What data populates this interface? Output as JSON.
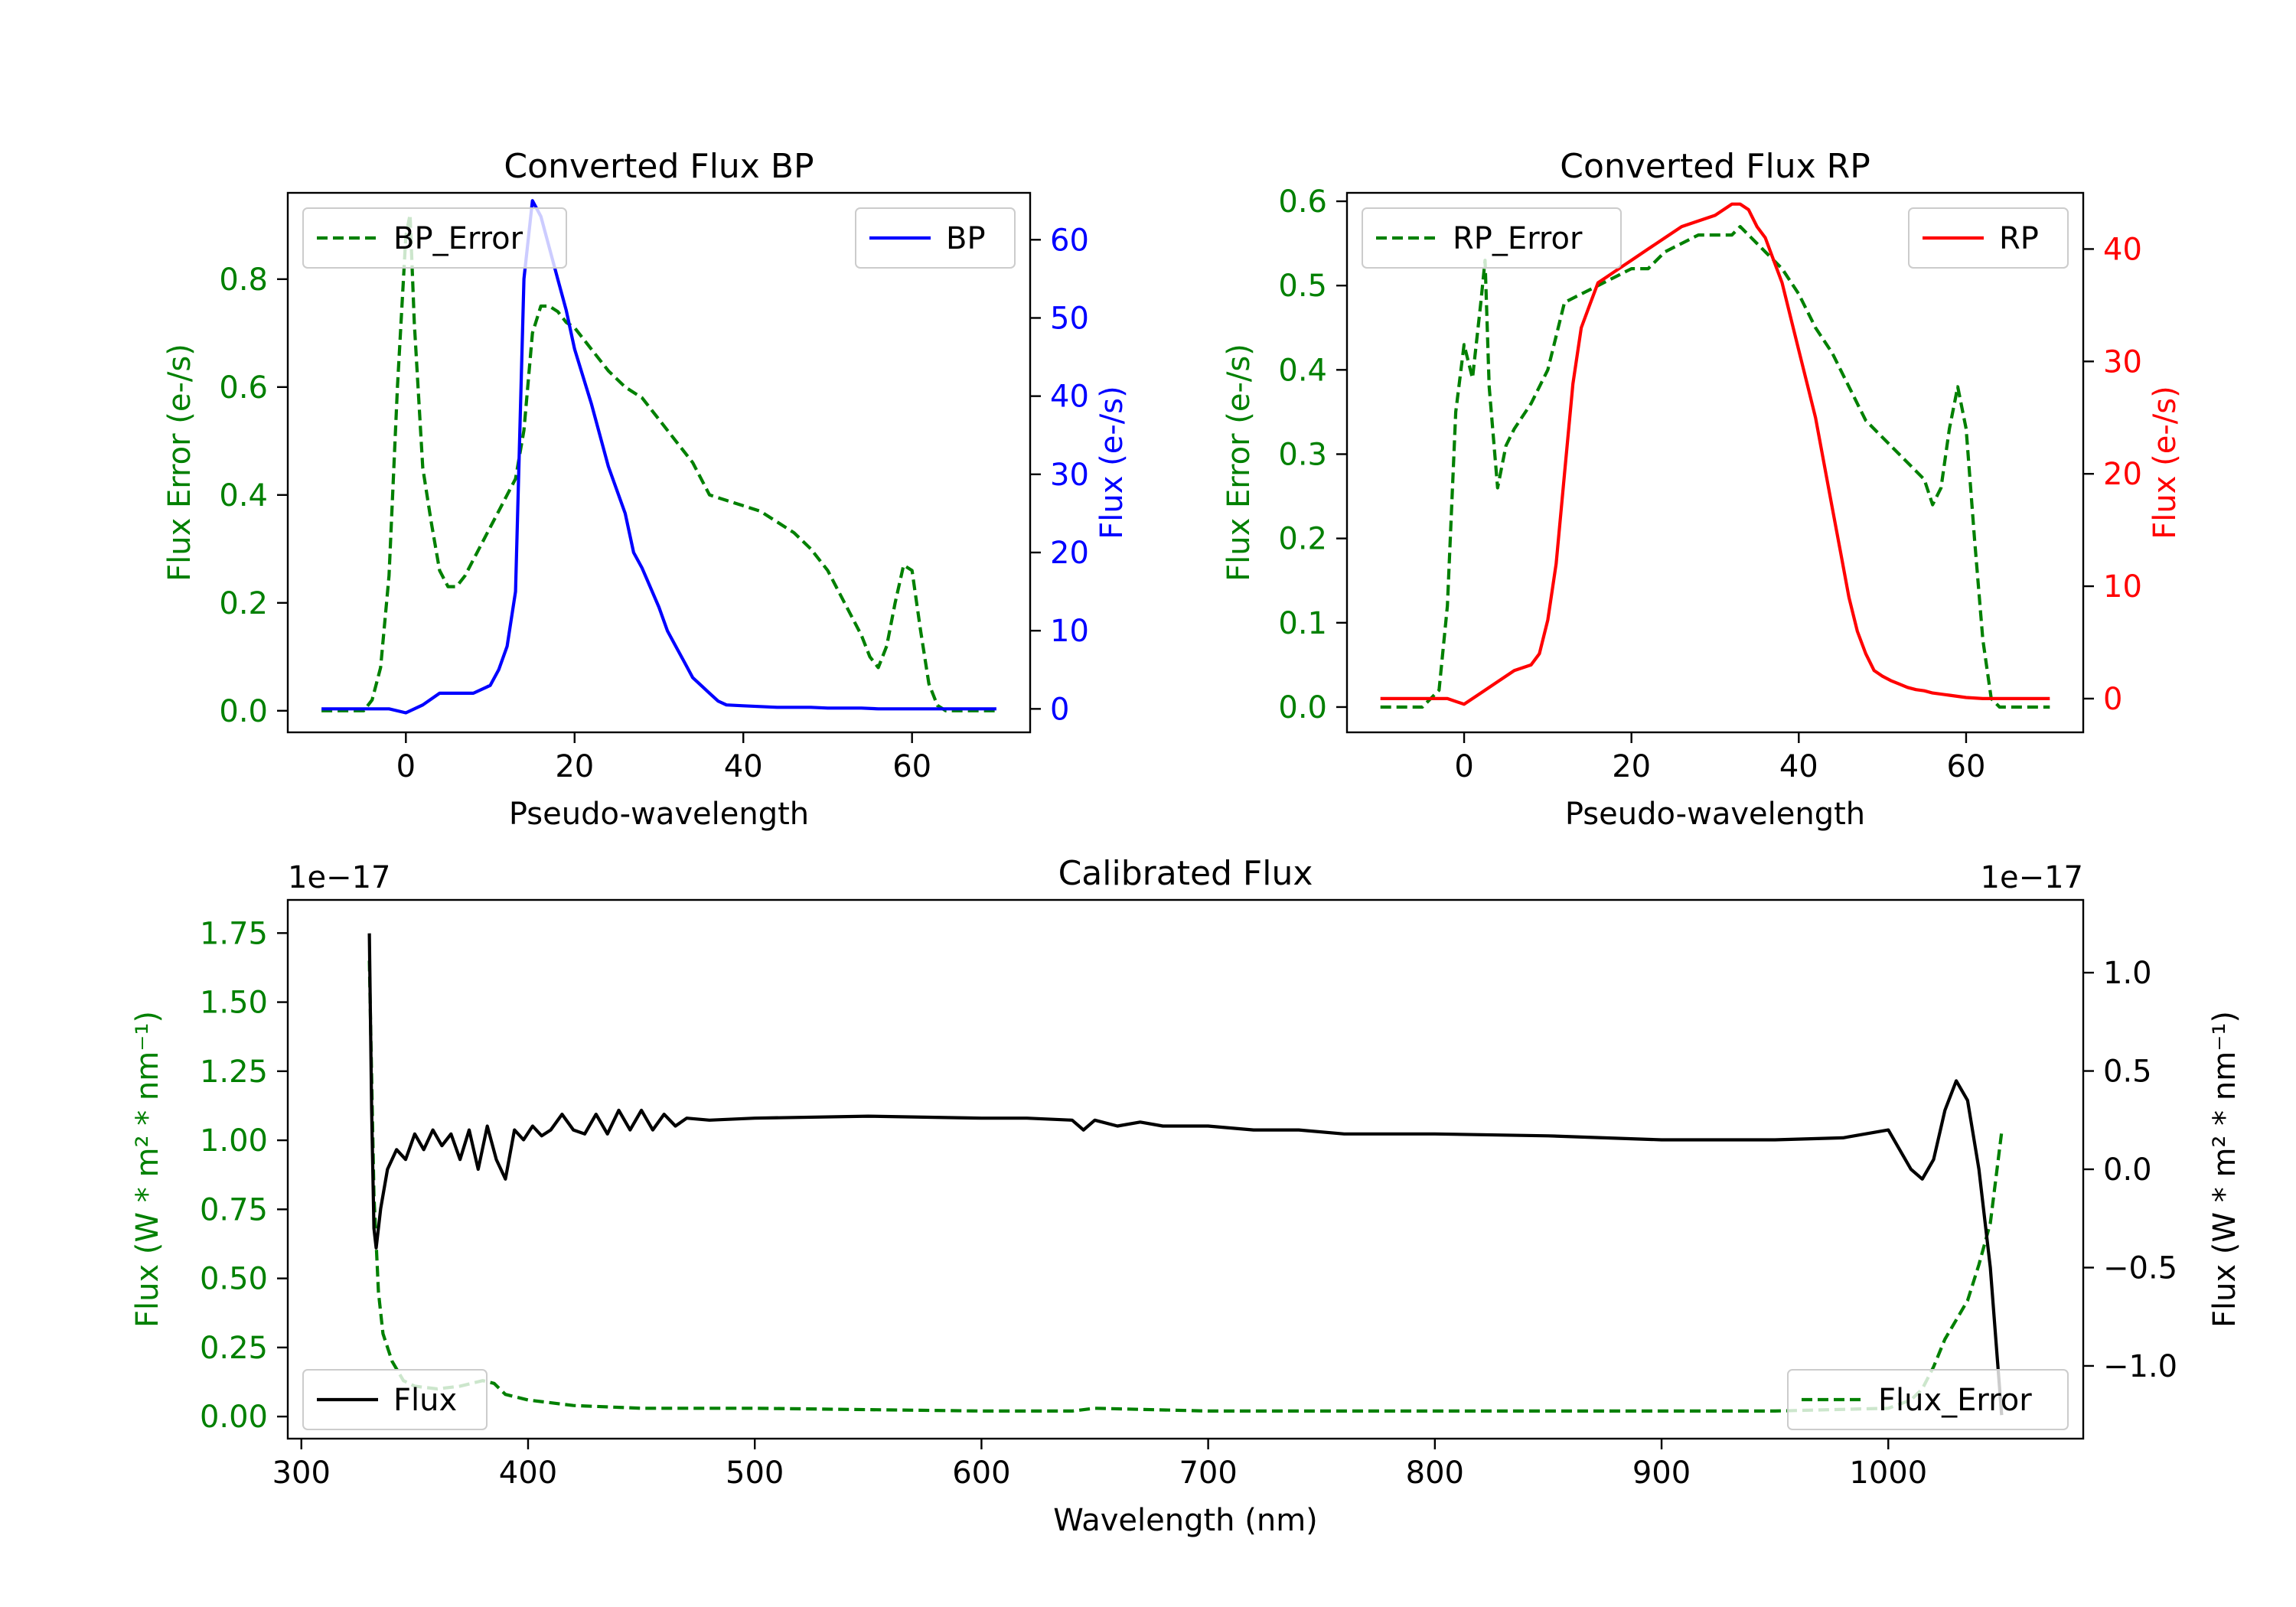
{
  "chart_data": [
    {
      "type": "line",
      "title": "Converted Flux BP",
      "xlabel": "Pseudo-wavelength",
      "ylabel_left": "Flux Error (e-/s)",
      "ylabel_right": "Flux (e-/s)",
      "xlim": [
        -14,
        74
      ],
      "ylim_left": [
        -0.04,
        0.96
      ],
      "ylim_right": [
        -3,
        66
      ],
      "xticks": [
        0,
        20,
        40,
        60
      ],
      "yticks_left": [
        0.0,
        0.2,
        0.4,
        0.6,
        0.8
      ],
      "yticks_right": [
        0,
        10,
        20,
        30,
        40,
        50,
        60
      ],
      "ytick_labels_left": [
        "0.0",
        "0.2",
        "0.4",
        "0.6",
        "0.8"
      ],
      "ytick_labels_right": [
        "0",
        "10",
        "20",
        "30",
        "40",
        "50",
        "60"
      ],
      "legend_left": "BP_Error",
      "legend_right": "BP",
      "colors": {
        "error": "#008000",
        "flux": "#0000ff",
        "left_axis": "#008000",
        "right_axis": "#0000ff"
      },
      "series": [
        {
          "name": "BP_Error",
          "axis": "left",
          "style": "dashed",
          "x": [
            -10,
            -5,
            -4,
            -3,
            -2,
            -1,
            0,
            0.5,
            1,
            2,
            3,
            4,
            5,
            6,
            7,
            8,
            9,
            10,
            11,
            12,
            13,
            14,
            15,
            16,
            17,
            18,
            19,
            20,
            22,
            24,
            26,
            28,
            30,
            32,
            34,
            36,
            38,
            40,
            42,
            44,
            46,
            48,
            50,
            52,
            54,
            55,
            56,
            57,
            58,
            59,
            60,
            61,
            62,
            63,
            64,
            70
          ],
          "y": [
            0.0,
            0.0,
            0.02,
            0.08,
            0.25,
            0.6,
            0.88,
            0.92,
            0.72,
            0.45,
            0.35,
            0.26,
            0.23,
            0.23,
            0.25,
            0.28,
            0.31,
            0.34,
            0.37,
            0.4,
            0.43,
            0.52,
            0.7,
            0.75,
            0.75,
            0.74,
            0.72,
            0.71,
            0.67,
            0.63,
            0.6,
            0.58,
            0.54,
            0.5,
            0.46,
            0.4,
            0.39,
            0.38,
            0.37,
            0.35,
            0.33,
            0.3,
            0.26,
            0.2,
            0.14,
            0.1,
            0.08,
            0.12,
            0.2,
            0.27,
            0.26,
            0.15,
            0.05,
            0.01,
            0.0,
            0.0
          ]
        },
        {
          "name": "BP",
          "axis": "right",
          "style": "solid",
          "x": [
            -10,
            -2,
            0,
            2,
            4,
            6,
            8,
            10,
            11,
            12,
            13,
            14,
            15,
            16,
            17,
            18,
            19,
            20,
            22,
            24,
            26,
            27,
            28,
            30,
            31,
            32,
            33,
            34,
            35,
            36,
            37,
            38,
            40,
            42,
            44,
            46,
            48,
            50,
            52,
            54,
            56,
            58,
            60,
            62,
            64,
            66,
            70
          ],
          "y": [
            0,
            0,
            -0.5,
            0.5,
            2,
            2,
            2,
            3,
            5,
            8,
            15,
            55,
            65,
            63,
            59,
            55,
            51,
            46,
            39,
            31,
            25,
            20,
            18,
            13,
            10,
            8,
            6,
            4,
            3,
            2,
            1,
            0.5,
            0.4,
            0.3,
            0.2,
            0.2,
            0.2,
            0.1,
            0.1,
            0.1,
            0,
            0,
            0,
            0,
            0,
            0,
            0
          ]
        }
      ]
    },
    {
      "type": "line",
      "title": "Converted Flux RP",
      "xlabel": "Pseudo-wavelength",
      "ylabel_left": "Flux Error (e-/s)",
      "ylabel_right": "Flux (e-/s)",
      "xlim": [
        -14,
        74
      ],
      "ylim_left": [
        -0.03,
        0.61
      ],
      "ylim_right": [
        -3,
        45
      ],
      "xticks": [
        0,
        20,
        40,
        60
      ],
      "yticks_left": [
        0.0,
        0.1,
        0.2,
        0.3,
        0.4,
        0.5,
        0.6
      ],
      "yticks_right": [
        0,
        10,
        20,
        30,
        40
      ],
      "ytick_labels_left": [
        "0.0",
        "0.1",
        "0.2",
        "0.3",
        "0.4",
        "0.5",
        "0.6"
      ],
      "ytick_labels_right": [
        "0",
        "10",
        "20",
        "30",
        "40"
      ],
      "legend_left": "RP_Error",
      "legend_right": "RP",
      "colors": {
        "error": "#008000",
        "flux": "#ff0000",
        "left_axis": "#008000",
        "right_axis": "#ff0000"
      },
      "series": [
        {
          "name": "RP_Error",
          "axis": "left",
          "style": "dashed",
          "x": [
            -10,
            -5,
            -3,
            -2,
            -1,
            0,
            1,
            2,
            2.5,
            3,
            4,
            5,
            6,
            8,
            10,
            12,
            14,
            16,
            18,
            20,
            22,
            24,
            26,
            28,
            30,
            32,
            33,
            34,
            36,
            38,
            40,
            42,
            44,
            46,
            48,
            50,
            52,
            54,
            55,
            56,
            57,
            58,
            59,
            60,
            61,
            62,
            63,
            64,
            70
          ],
          "y": [
            0.0,
            0.0,
            0.02,
            0.12,
            0.35,
            0.43,
            0.39,
            0.48,
            0.53,
            0.38,
            0.26,
            0.31,
            0.33,
            0.36,
            0.4,
            0.48,
            0.49,
            0.5,
            0.51,
            0.52,
            0.52,
            0.54,
            0.55,
            0.56,
            0.56,
            0.56,
            0.57,
            0.56,
            0.54,
            0.52,
            0.49,
            0.45,
            0.42,
            0.38,
            0.34,
            0.32,
            0.3,
            0.28,
            0.27,
            0.24,
            0.26,
            0.33,
            0.38,
            0.33,
            0.2,
            0.08,
            0.01,
            0.0,
            0.0
          ]
        },
        {
          "name": "RP",
          "axis": "right",
          "style": "solid",
          "x": [
            -10,
            -2,
            0,
            2,
            4,
            6,
            8,
            9,
            10,
            11,
            12,
            13,
            14,
            15,
            16,
            17,
            18,
            20,
            22,
            24,
            26,
            28,
            30,
            32,
            33,
            34,
            35,
            36,
            37,
            38,
            39,
            40,
            41,
            42,
            43,
            44,
            45,
            46,
            47,
            48,
            49,
            50,
            51,
            52,
            53,
            54,
            55,
            56,
            58,
            60,
            62,
            70
          ],
          "y": [
            0,
            0,
            -0.5,
            0.5,
            1.5,
            2.5,
            3,
            4,
            7,
            12,
            20,
            28,
            33,
            35,
            37,
            37.5,
            38,
            39,
            40,
            41,
            42,
            42.5,
            43,
            44,
            44,
            43.5,
            42,
            41,
            39,
            37,
            34,
            31,
            28,
            25,
            21,
            17,
            13,
            9,
            6,
            4,
            2.5,
            2,
            1.6,
            1.3,
            1,
            0.8,
            0.7,
            0.5,
            0.3,
            0.1,
            0,
            0
          ]
        }
      ]
    },
    {
      "type": "line",
      "title": "Calibrated Flux",
      "xlabel": "Wavelength (nm)",
      "ylabel_left": "Flux (W * m² * nm⁻¹)",
      "ylabel_right": "Flux (W * m² * nm⁻¹)",
      "offset_left": "1e−17",
      "offset_right": "1e−17",
      "xlim": [
        294,
        1086
      ],
      "ylim_left": [
        -0.08,
        1.87
      ],
      "ylim_right": [
        -1.37,
        1.37
      ],
      "xticks": [
        300,
        400,
        500,
        600,
        700,
        800,
        900,
        1000
      ],
      "yticks_left": [
        0.0,
        0.25,
        0.5,
        0.75,
        1.0,
        1.25,
        1.5,
        1.75
      ],
      "yticks_right": [
        -1.0,
        -0.5,
        0.0,
        0.5,
        1.0
      ],
      "ytick_labels_left": [
        "0.00",
        "0.25",
        "0.50",
        "0.75",
        "1.00",
        "1.25",
        "1.50",
        "1.75"
      ],
      "ytick_labels_right": [
        "−1.0",
        "−0.5",
        "0.0",
        "0.5",
        "1.0"
      ],
      "legend_left": "Flux",
      "legend_right": "Flux_Error",
      "colors": {
        "error": "#008000",
        "flux": "#000000",
        "left_axis": "#008000",
        "right_axis": "#000000"
      },
      "series": [
        {
          "name": "Flux_Error",
          "axis": "left",
          "style": "dashed",
          "x": [
            330,
            332,
            334,
            336,
            340,
            345,
            350,
            360,
            370,
            380,
            385,
            390,
            400,
            420,
            450,
            500,
            600,
            640,
            650,
            700,
            800,
            900,
            950,
            1000,
            1010,
            1015,
            1020,
            1025,
            1030,
            1035,
            1040,
            1045,
            1050
          ],
          "y": [
            1.65,
            0.8,
            0.45,
            0.3,
            0.2,
            0.13,
            0.11,
            0.1,
            0.11,
            0.13,
            0.12,
            0.08,
            0.06,
            0.04,
            0.03,
            0.03,
            0.02,
            0.02,
            0.03,
            0.02,
            0.02,
            0.02,
            0.02,
            0.03,
            0.06,
            0.1,
            0.18,
            0.28,
            0.35,
            0.42,
            0.55,
            0.7,
            1.03
          ]
        },
        {
          "name": "Flux",
          "axis": "right",
          "style": "solid",
          "x": [
            330,
            331,
            332,
            333,
            335,
            338,
            342,
            346,
            350,
            354,
            358,
            362,
            366,
            370,
            374,
            378,
            382,
            386,
            390,
            394,
            398,
            402,
            406,
            410,
            415,
            420,
            425,
            430,
            435,
            440,
            445,
            450,
            455,
            460,
            465,
            470,
            480,
            500,
            550,
            600,
            620,
            640,
            645,
            650,
            660,
            670,
            680,
            700,
            720,
            740,
            760,
            800,
            850,
            900,
            950,
            980,
            1000,
            1005,
            1010,
            1015,
            1020,
            1025,
            1030,
            1035,
            1040,
            1045,
            1050
          ],
          "y": [
            1.2,
            0.3,
            -0.3,
            -0.4,
            -0.2,
            0.0,
            0.1,
            0.05,
            0.18,
            0.1,
            0.2,
            0.12,
            0.18,
            0.05,
            0.2,
            0.0,
            0.22,
            0.05,
            -0.05,
            0.2,
            0.15,
            0.22,
            0.17,
            0.2,
            0.28,
            0.2,
            0.18,
            0.28,
            0.18,
            0.3,
            0.2,
            0.3,
            0.2,
            0.28,
            0.22,
            0.26,
            0.25,
            0.26,
            0.27,
            0.26,
            0.26,
            0.25,
            0.2,
            0.25,
            0.22,
            0.24,
            0.22,
            0.22,
            0.2,
            0.2,
            0.18,
            0.18,
            0.17,
            0.15,
            0.15,
            0.16,
            0.2,
            0.1,
            0.0,
            -0.05,
            0.05,
            0.3,
            0.45,
            0.35,
            0.0,
            -0.5,
            -1.25
          ]
        }
      ]
    }
  ]
}
